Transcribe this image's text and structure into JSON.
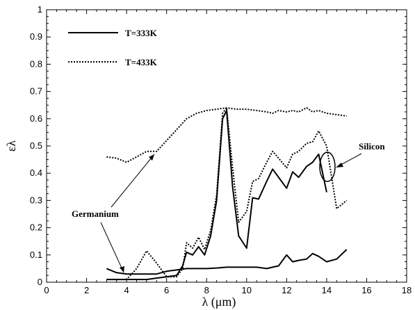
{
  "chart_data": {
    "type": "line",
    "xlabel": "λ (μm)",
    "ylabel": "ελ",
    "xlim": [
      0,
      18
    ],
    "ylim": [
      0,
      1
    ],
    "x_ticks": [
      0,
      2,
      4,
      6,
      8,
      10,
      12,
      14,
      16,
      18
    ],
    "y_ticks": [
      0,
      0.1,
      0.2,
      0.3,
      0.4,
      0.5,
      0.6,
      0.7,
      0.8,
      0.9,
      1
    ],
    "grid": false,
    "legend_position": "top-left",
    "legend": [
      {
        "label": "T=333K",
        "style": "solid"
      },
      {
        "label": "T=433K",
        "style": "dotted"
      }
    ],
    "annotations": [
      "Germanium",
      "Silicon"
    ],
    "series": [
      {
        "style": "solid",
        "group": "Germanium",
        "x": [
          3,
          3.5,
          4,
          4.5,
          5,
          5.5,
          6,
          6.5,
          7,
          7.5,
          8,
          8.5,
          9,
          9.5,
          10,
          10.5,
          11,
          11.3,
          11.6,
          12,
          12.3,
          12.6,
          13,
          13.3,
          13.6,
          14,
          14.5,
          15
        ],
        "y": [
          0.05,
          0.035,
          0.03,
          0.03,
          0.03,
          0.03,
          0.04,
          0.045,
          0.05,
          0.05,
          0.05,
          0.052,
          0.055,
          0.055,
          0.055,
          0.055,
          0.05,
          0.055,
          0.06,
          0.1,
          0.075,
          0.08,
          0.085,
          0.105,
          0.095,
          0.075,
          0.085,
          0.12
        ]
      },
      {
        "style": "solid",
        "group": "Silicon",
        "x": [
          3,
          3.5,
          4,
          4.5,
          5,
          5.5,
          6,
          6.5,
          6.8,
          7,
          7.3,
          7.6,
          7.9,
          8.2,
          8.5,
          8.8,
          9,
          9.3,
          9.6,
          10,
          10.3,
          10.6,
          11,
          11.3,
          11.6,
          12,
          12.3,
          12.6,
          13,
          13.3,
          13.6,
          14
        ],
        "y": [
          0.01,
          0.01,
          0.01,
          0.01,
          0.01,
          0.015,
          0.02,
          0.025,
          0.06,
          0.11,
          0.1,
          0.13,
          0.1,
          0.17,
          0.3,
          0.6,
          0.63,
          0.35,
          0.17,
          0.125,
          0.31,
          0.305,
          0.37,
          0.415,
          0.385,
          0.345,
          0.405,
          0.385,
          0.425,
          0.44,
          0.47,
          0.33
        ]
      },
      {
        "style": "dotted",
        "group": "Germanium",
        "x": [
          3,
          3.5,
          4,
          4.5,
          5,
          5.5,
          6,
          6.5,
          7,
          7.5,
          8,
          8.5,
          9,
          9.5,
          10,
          10.5,
          11,
          11.3,
          11.6,
          12,
          12.3,
          12.6,
          13,
          13.3,
          13.6,
          14,
          14.5,
          15
        ],
        "y": [
          0.46,
          0.455,
          0.44,
          0.46,
          0.48,
          0.48,
          0.52,
          0.56,
          0.6,
          0.62,
          0.63,
          0.635,
          0.64,
          0.635,
          0.635,
          0.63,
          0.625,
          0.62,
          0.63,
          0.625,
          0.63,
          0.625,
          0.64,
          0.625,
          0.63,
          0.62,
          0.615,
          0.61
        ]
      },
      {
        "style": "dotted",
        "group": "Silicon",
        "x": [
          3,
          3.5,
          4,
          4.5,
          5,
          5.5,
          6,
          6.5,
          6.8,
          7,
          7.3,
          7.6,
          7.9,
          8.2,
          8.5,
          8.8,
          9,
          9.3,
          9.6,
          10,
          10.3,
          10.6,
          11,
          11.3,
          11.6,
          12,
          12.3,
          12.6,
          13,
          13.3,
          13.6,
          14,
          14.5,
          15
        ],
        "y": [
          0.01,
          0.01,
          0.01,
          0.05,
          0.115,
          0.07,
          0.02,
          0.02,
          0.05,
          0.145,
          0.125,
          0.165,
          0.12,
          0.19,
          0.32,
          0.62,
          0.64,
          0.42,
          0.22,
          0.26,
          0.37,
          0.38,
          0.44,
          0.48,
          0.455,
          0.42,
          0.47,
          0.48,
          0.51,
          0.515,
          0.555,
          0.5,
          0.27,
          0.3
        ]
      }
    ]
  }
}
